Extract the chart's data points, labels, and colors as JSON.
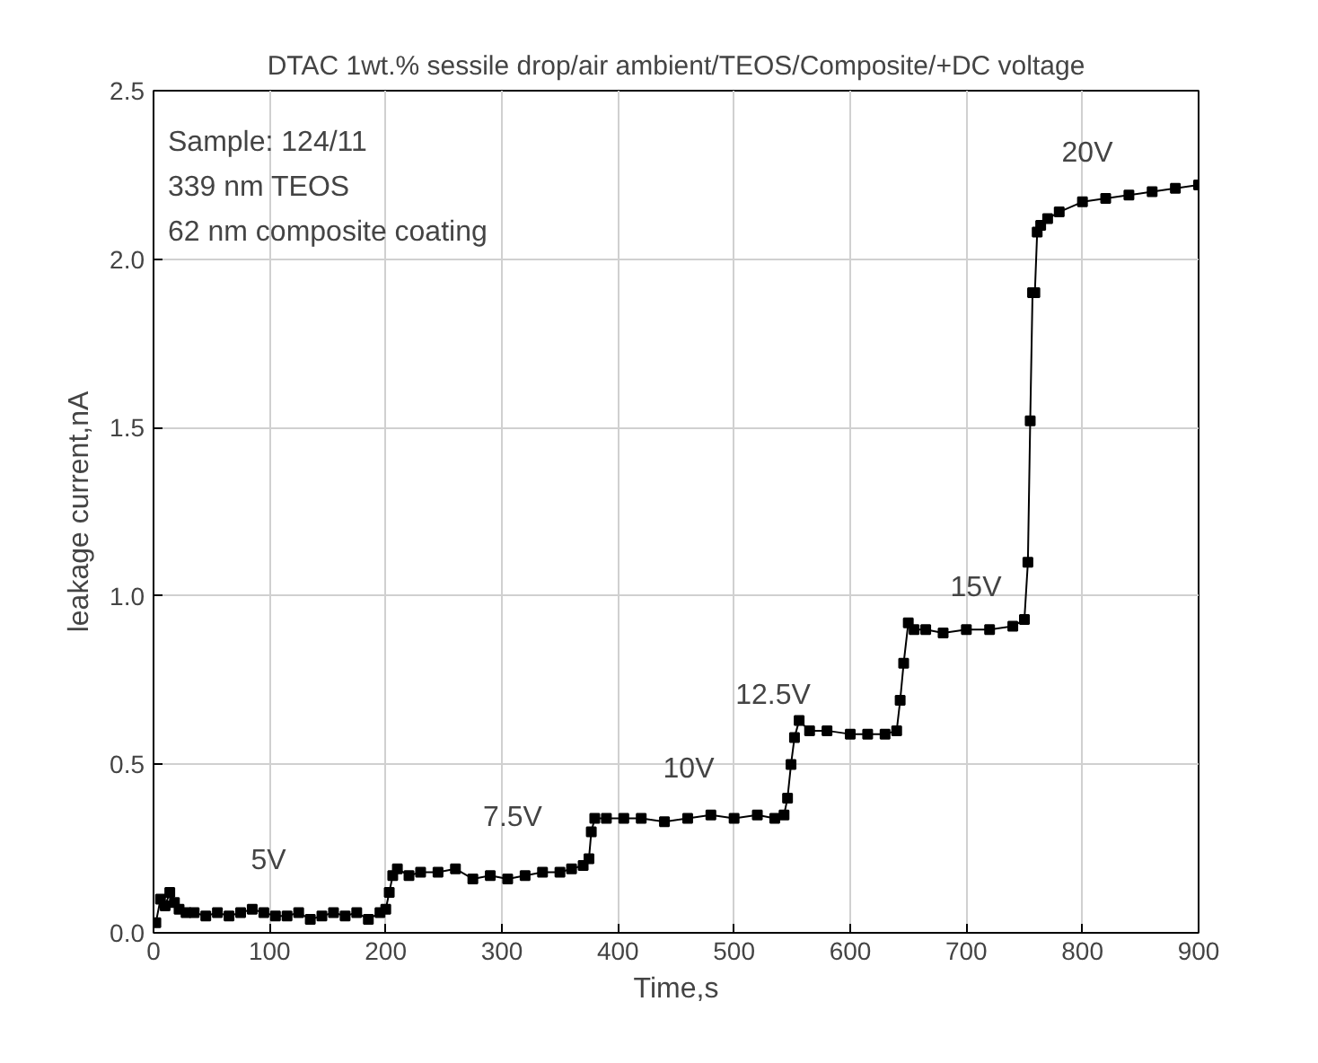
{
  "chart_data": {
    "type": "line",
    "title": "DTAC 1wt.% sessile drop/air ambient/TEOS/Composite/+DC voltage",
    "xlabel": "Time,s",
    "ylabel": "leakage current,nA",
    "xlim": [
      0,
      900
    ],
    "ylim": [
      0,
      2.5
    ],
    "xticks": [
      0,
      100,
      200,
      300,
      400,
      500,
      600,
      700,
      800,
      900
    ],
    "yticks": [
      {
        "value": 0,
        "label": "0.0"
      },
      0.5,
      {
        "value": 1,
        "label": "1.0"
      },
      1.5,
      {
        "value": 2,
        "label": "2.0"
      },
      2.5
    ],
    "grid": true,
    "marker": "square",
    "line_style": "solid",
    "series": [
      {
        "color": "#000000",
        "x": [
          2,
          6,
          10,
          14,
          18,
          22,
          28,
          35,
          45,
          55,
          65,
          75,
          85,
          95,
          105,
          115,
          125,
          135,
          145,
          155,
          165,
          175,
          185,
          195,
          200,
          203,
          206,
          210,
          220,
          230,
          245,
          260,
          275,
          290,
          305,
          320,
          335,
          350,
          360,
          370,
          375,
          377,
          380,
          390,
          405,
          420,
          440,
          460,
          480,
          500,
          520,
          535,
          543,
          546,
          549,
          552,
          556,
          565,
          580,
          600,
          615,
          630,
          640,
          643,
          646,
          650,
          655,
          665,
          680,
          700,
          720,
          740,
          750,
          753,
          755,
          757,
          759,
          761,
          764,
          770,
          780,
          800,
          820,
          840,
          860,
          880,
          900
        ],
        "values": [
          0.03,
          0.1,
          0.08,
          0.12,
          0.09,
          0.07,
          0.06,
          0.06,
          0.05,
          0.06,
          0.05,
          0.06,
          0.07,
          0.06,
          0.05,
          0.05,
          0.06,
          0.04,
          0.05,
          0.06,
          0.05,
          0.06,
          0.04,
          0.06,
          0.07,
          0.12,
          0.17,
          0.19,
          0.17,
          0.18,
          0.18,
          0.19,
          0.16,
          0.17,
          0.16,
          0.17,
          0.18,
          0.18,
          0.19,
          0.2,
          0.22,
          0.3,
          0.34,
          0.34,
          0.34,
          0.34,
          0.33,
          0.34,
          0.35,
          0.34,
          0.35,
          0.34,
          0.35,
          0.4,
          0.5,
          0.58,
          0.63,
          0.6,
          0.6,
          0.59,
          0.59,
          0.59,
          0.6,
          0.69,
          0.8,
          0.92,
          0.9,
          0.9,
          0.89,
          0.9,
          0.9,
          0.91,
          0.93,
          1.1,
          1.52,
          1.9,
          1.9,
          2.08,
          2.1,
          2.12,
          2.14,
          2.17,
          2.18,
          2.19,
          2.2,
          2.21,
          2.22
        ]
      }
    ],
    "annotations": [
      "5V",
      "7.5V",
      "10V",
      "12.5V",
      "15V",
      "20V",
      "Sample: 124/11",
      "339 nm TEOS",
      "62 nm composite coating"
    ]
  }
}
